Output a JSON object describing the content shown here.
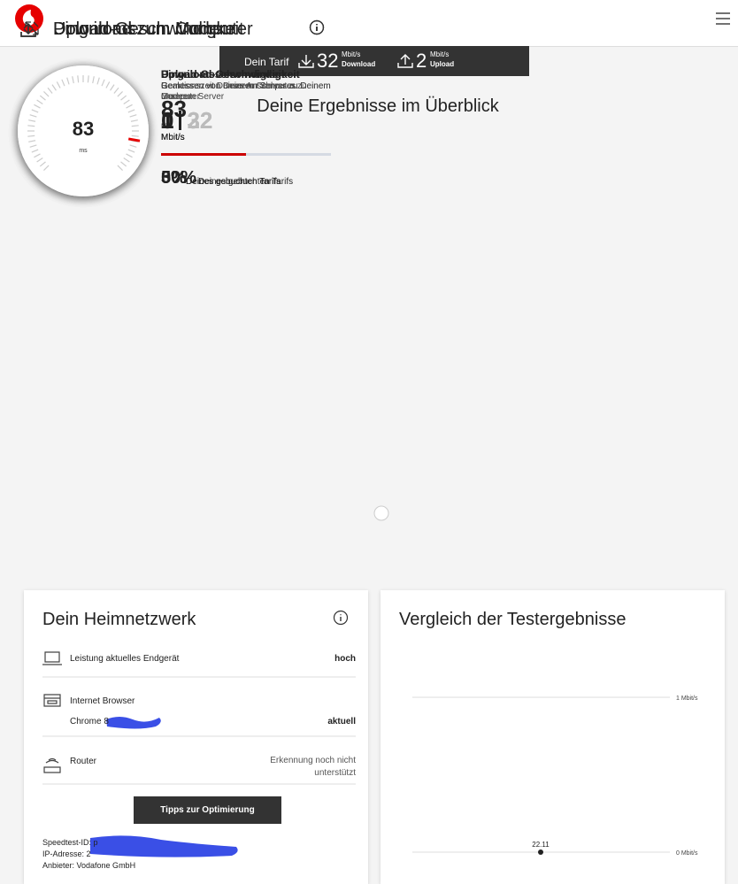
{
  "header": {
    "tariff": {
      "label": "Dein Tarif",
      "download": "32",
      "download_unit": "Mbit/s",
      "download_label": "Download",
      "upload": "2",
      "upload_unit": "Mbit/s",
      "upload_label": "Upload"
    }
  },
  "heading": "Deine Ergebnisse im Überblick",
  "cards": [
    {
      "title": "Download zum Computer",
      "heading": "Download-Geschwindigkeit",
      "description": "Gemessen von unserem Server zu Deinem Computer",
      "speed": 0,
      "max": 32,
      "unit": "Mbit/s",
      "percent": "0%",
      "percent_label": "Deines gebuchten Tarifs"
    },
    {
      "title": "Download zum Modem",
      "heading": "Download-Geschwindigkeit",
      "description": "Gemessen von unserem Server zu Deinem Modem",
      "speed": 1,
      "max": 32,
      "unit": "Mbit/s",
      "percent": "3%",
      "percent_label": "Deines gebuchten Tarifs"
    },
    {
      "title": "Upload-Geschwindigkeit",
      "heading": "Upload-Geschwindigkeit",
      "description": "Gemessen von Deinem Computer zu unserem Server",
      "speed": 1,
      "max": 2,
      "unit": "Mbit/s",
      "percent": "50%",
      "percent_label": "Deines gebuchten Tarifs"
    },
    {
      "title": "Ping in ms",
      "heading": "Ping in ms",
      "description": "Reaktionszeit Deines Anschlusses",
      "speed": 83,
      "unit": "ms"
    }
  ],
  "home_network": {
    "title": "Dein Heimnetzwerk",
    "rows": [
      {
        "label": "Leistung aktuelles Endgerät",
        "value": "hoch"
      },
      {
        "label": "Internet Browser",
        "detail": "Chrome 8",
        "value": "aktuell"
      },
      {
        "label": "Router",
        "value": "Erkennung noch nicht unterstützt"
      }
    ],
    "button": "Tipps zur Optimierung",
    "footer": [
      "Speedtest-ID: p",
      "IP-Adresse: 2",
      "Anbieter: Vodafone GmbH"
    ]
  },
  "comparison": {
    "title": "Vergleich der Testergebnisse",
    "ylim": [
      0,
      1
    ],
    "yticks": [
      {
        "value": 0,
        "label": "0 Mbit/s"
      },
      {
        "value": 1,
        "label": "1 Mbit/s"
      }
    ],
    "x": [
      "22.11"
    ],
    "values": [
      0
    ]
  }
}
